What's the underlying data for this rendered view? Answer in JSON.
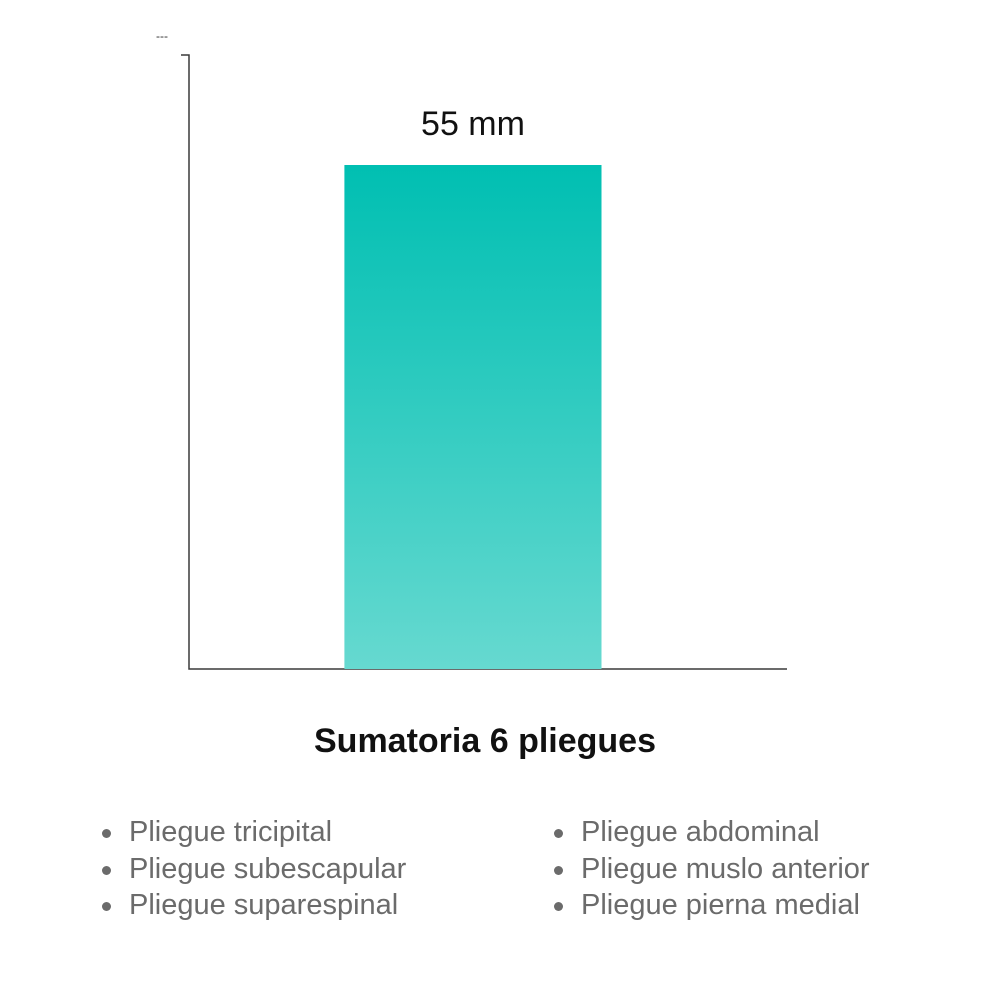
{
  "chart_data": {
    "type": "bar",
    "title": "Sumatoria 6 pliegues",
    "categories": [
      "Sumatoria 6 pliegues"
    ],
    "values": [
      55
    ],
    "value_labels": [
      "55 mm"
    ],
    "top_mark": "---",
    "ylim": [
      0,
      67
    ],
    "grid": false,
    "bar_color_top": "#00bfb2",
    "bar_color_bottom": "#66d9d0",
    "axis_color": "#3a3a3a"
  },
  "legend": {
    "left": [
      "Pliegue tricipital",
      "Pliegue subescapular",
      "Pliegue suparespinal"
    ],
    "right": [
      "Pliegue abdominal",
      "Pliegue muslo anterior",
      "Pliegue pierna medial"
    ]
  }
}
